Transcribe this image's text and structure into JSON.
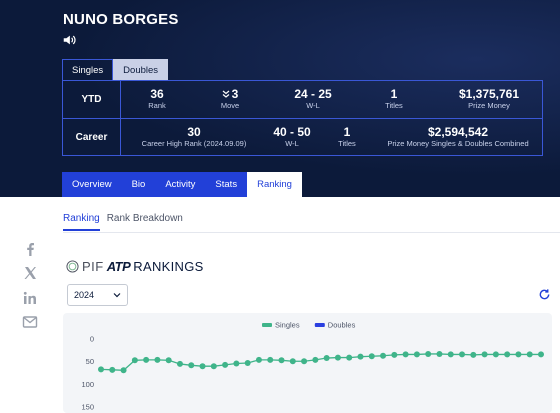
{
  "player": {
    "name": "NUNO BORGES"
  },
  "type_tabs": [
    {
      "label": "Singles",
      "active": false
    },
    {
      "label": "Doubles",
      "active": true
    }
  ],
  "ytd": {
    "label": "YTD",
    "rank": {
      "value": "36",
      "label": "Rank"
    },
    "move": {
      "value": "3",
      "label": "Move",
      "direction": "down"
    },
    "wl": {
      "value": "24 - 25",
      "label": "W-L"
    },
    "titles": {
      "value": "1",
      "label": "Titles"
    },
    "prize": {
      "value": "$1,375,761",
      "label": "Prize Money"
    }
  },
  "career": {
    "label": "Career",
    "high": {
      "value": "30",
      "label": "Career High Rank (2024.09.09)"
    },
    "wl": {
      "value": "40 - 50",
      "label": "W-L"
    },
    "titles": {
      "value": "1",
      "label": "Titles"
    },
    "prize": {
      "value": "$2,594,542",
      "label": "Prize Money Singles & Doubles Combined"
    }
  },
  "nav_tabs": [
    {
      "label": "Overview",
      "active": false
    },
    {
      "label": "Bio",
      "active": false
    },
    {
      "label": "Activity",
      "active": false
    },
    {
      "label": "Stats",
      "active": false
    },
    {
      "label": "Ranking",
      "active": true
    }
  ],
  "sub_tabs": [
    {
      "label": "Ranking",
      "active": true
    },
    {
      "label": "Rank Breakdown",
      "active": false
    }
  ],
  "share_icons": [
    "facebook-icon",
    "x-icon",
    "linkedin-icon",
    "email-icon"
  ],
  "rankings_logo": {
    "pif": "PIF",
    "atp": "ATP",
    "title": "RANKINGS"
  },
  "year_select": {
    "value": "2024"
  },
  "colors": {
    "navy": "#0c1a3a",
    "accent": "#2240d8",
    "singles": "#3fb48a",
    "doubles": "#2a3fe0"
  },
  "chart_data": {
    "type": "line",
    "series": [
      {
        "name": "Singles",
        "values": [
          67,
          68,
          69,
          47,
          46,
          46,
          47,
          55,
          58,
          60,
          60,
          57,
          54,
          53,
          46,
          46,
          47,
          49,
          49,
          46,
          42,
          41,
          41,
          39,
          38,
          37,
          35,
          34,
          34,
          33,
          33,
          34,
          34,
          35,
          34,
          34,
          34,
          34,
          34,
          34
        ]
      },
      {
        "name": "Doubles",
        "values": []
      }
    ],
    "ylim": [
      0,
      150
    ],
    "yticks": [
      "0",
      "50",
      "100",
      "150"
    ],
    "xlabel": "",
    "ylabel": "",
    "legend": "top-center",
    "grid": false
  }
}
